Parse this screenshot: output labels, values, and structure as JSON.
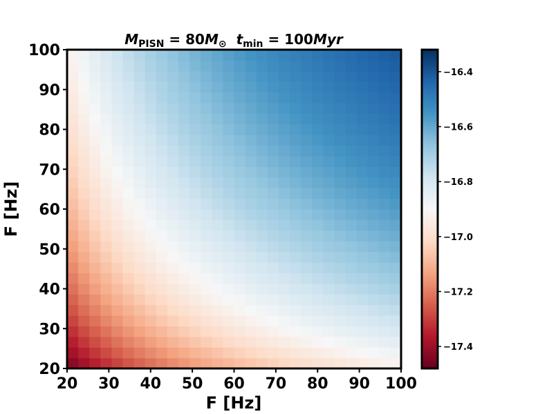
{
  "chart_data": {
    "type": "heatmap",
    "title": "M_PISN = 80 M_⊙   t_min = 100 Myr",
    "title_parts": {
      "m_symbol": "M",
      "m_sub": "PISN",
      "m_eq": " = 80",
      "m_unit": "M",
      "m_unit_sub": "⊙",
      "t_symbol": "t",
      "t_sub": "min",
      "t_eq": " = 100",
      "t_unit": "Myr"
    },
    "xlabel": "F [Hz]",
    "ylabel": "F [Hz]",
    "xlim": [
      20,
      100
    ],
    "ylim": [
      20,
      100
    ],
    "xticks": [
      "20",
      "30",
      "40",
      "50",
      "60",
      "70",
      "80",
      "90",
      "100"
    ],
    "yticks": [
      "20",
      "30",
      "40",
      "50",
      "60",
      "70",
      "80",
      "90",
      "100"
    ],
    "grid": false,
    "colormap": "RdBu",
    "value_range": [
      -17.48,
      -16.32
    ],
    "colorbar": {
      "ticks": [
        -17.4,
        -17.2,
        -17.0,
        -16.8,
        -16.6,
        -16.4
      ],
      "tick_labels": [
        "−17.4",
        "−17.2",
        "−17.0",
        "−16.8",
        "−16.6",
        "−16.4"
      ]
    },
    "grid_size": [
      30,
      30
    ],
    "value_samples": [
      {
        "x": 20,
        "y": 20,
        "value": -17.47
      },
      {
        "x": 100,
        "y": 20,
        "value": -16.92
      },
      {
        "x": 20,
        "y": 100,
        "value": -16.92
      },
      {
        "x": 100,
        "y": 100,
        "value": -16.33
      },
      {
        "x": 20,
        "y": 60,
        "value": -17.12
      },
      {
        "x": 60,
        "y": 20,
        "value": -17.14
      },
      {
        "x": 60,
        "y": 60,
        "value": -16.76
      }
    ],
    "colors": {
      "low": "#67001f",
      "mid": "#f7f7f7",
      "high": "#053061"
    }
  }
}
